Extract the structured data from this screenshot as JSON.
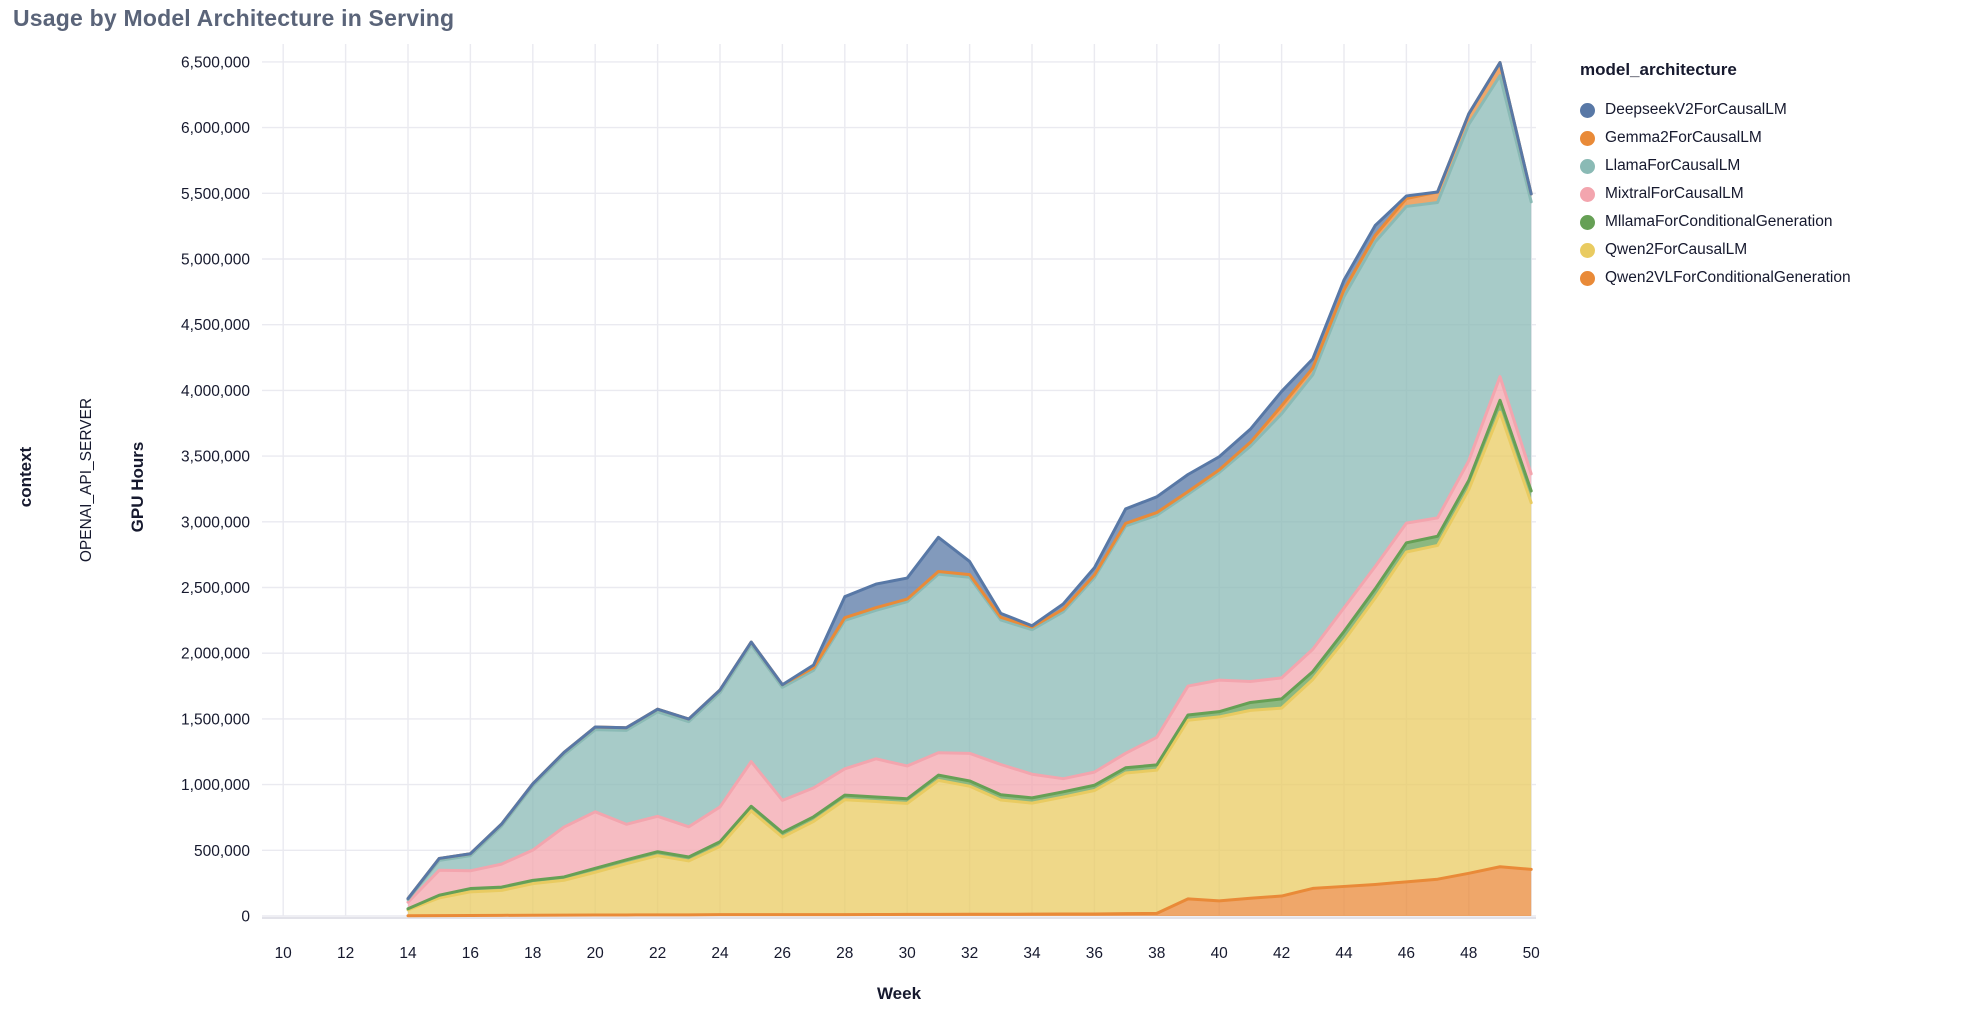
{
  "title": "Usage by Model Architecture in Serving",
  "facet": {
    "row_header": "context",
    "row_value": "OPENAI_API_SERVER"
  },
  "legend": {
    "title": "model_architecture",
    "items": [
      {
        "label": "DeepseekV2ForCausalLM",
        "color": "#5878a6"
      },
      {
        "label": "Gemma2ForCausalLM",
        "color": "#e98a38"
      },
      {
        "label": "LlamaForCausalLM",
        "color": "#8abab5"
      },
      {
        "label": "MixtralForCausalLM",
        "color": "#f3a5ae"
      },
      {
        "label": "MllamaForConditionalGeneration",
        "color": "#66a055"
      },
      {
        "label": "Qwen2ForCausalLM",
        "color": "#e9cb61"
      },
      {
        "label": "Qwen2VLForConditionalGeneration",
        "color": "#e98a38"
      }
    ]
  },
  "chart_data": {
    "type": "area",
    "stacked": true,
    "title": "Usage by Model Architecture in Serving",
    "xlabel": "Week",
    "ylabel": "GPU Hours",
    "legend_position": "right",
    "grid": true,
    "xlim": [
      10,
      50
    ],
    "x_tick_step": 2,
    "ylim": [
      0,
      6500000
    ],
    "y_tick_step": 500000,
    "x": [
      14,
      15,
      16,
      17,
      18,
      19,
      20,
      21,
      22,
      23,
      24,
      25,
      26,
      27,
      28,
      29,
      30,
      31,
      32,
      33,
      34,
      35,
      36,
      37,
      38,
      39,
      40,
      41,
      42,
      43,
      44,
      45,
      46,
      47,
      48,
      49,
      50
    ],
    "stack_order": "bottom_to_top",
    "fill_opacity": 0.75,
    "series": [
      {
        "name": "Qwen2VLForConditionalGeneration",
        "color": "#e98a38",
        "values": [
          2000,
          3000,
          4000,
          5000,
          6000,
          7000,
          8000,
          8000,
          9000,
          9000,
          10000,
          10000,
          10000,
          10000,
          10000,
          11000,
          12000,
          12000,
          13000,
          13000,
          14000,
          15000,
          15000,
          18000,
          20000,
          130000,
          115000,
          135000,
          152000,
          210000,
          225000,
          240000,
          260000,
          280000,
          325000,
          375000,
          355000
        ]
      },
      {
        "name": "Qwen2ForCausalLM",
        "color": "#e9cb61",
        "values": [
          45000,
          135000,
          180000,
          190000,
          240000,
          265000,
          325000,
          390000,
          450000,
          410000,
          520000,
          790000,
          590000,
          710000,
          875000,
          860000,
          845000,
          1020000,
          975000,
          870000,
          845000,
          890000,
          940000,
          1070000,
          1090000,
          1360000,
          1400000,
          1430000,
          1430000,
          1590000,
          1870000,
          2180000,
          2510000,
          2540000,
          2920000,
          3460000,
          2790000
        ]
      },
      {
        "name": "MllamaForConditionalGeneration",
        "color": "#66a055",
        "values": [
          8000,
          20000,
          25000,
          25000,
          25000,
          25000,
          30000,
          30000,
          30000,
          30000,
          35000,
          35000,
          35000,
          35000,
          35000,
          35000,
          35000,
          40000,
          40000,
          40000,
          40000,
          40000,
          40000,
          40000,
          40000,
          40000,
          40000,
          60000,
          70000,
          60000,
          70000,
          70000,
          70000,
          70000,
          70000,
          90000,
          90000
        ]
      },
      {
        "name": "MixtralForCausalLM",
        "color": "#f3a5ae",
        "values": [
          50000,
          190000,
          135000,
          175000,
          230000,
          380000,
          430000,
          270000,
          270000,
          230000,
          265000,
          340000,
          245000,
          220000,
          200000,
          290000,
          250000,
          170000,
          210000,
          230000,
          180000,
          100000,
          100000,
          110000,
          210000,
          220000,
          240000,
          160000,
          160000,
          170000,
          180000,
          170000,
          150000,
          140000,
          150000,
          180000,
          130000
        ]
      },
      {
        "name": "LlamaForCausalLM",
        "color": "#8abab5",
        "values": [
          20000,
          75000,
          115000,
          290000,
          490000,
          550000,
          625000,
          715000,
          795000,
          800000,
          870000,
          890000,
          860000,
          895000,
          1130000,
          1130000,
          1250000,
          1360000,
          1340000,
          1100000,
          1100000,
          1270000,
          1480000,
          1730000,
          1690000,
          1460000,
          1580000,
          1790000,
          2010000,
          2090000,
          2370000,
          2470000,
          2410000,
          2400000,
          2560000,
          2290000,
          2070000
        ]
      },
      {
        "name": "Gemma2ForCausalLM",
        "color": "#e98a38",
        "values": [
          8000,
          15000,
          15000,
          15000,
          15000,
          18000,
          20000,
          20000,
          20000,
          20000,
          20000,
          20000,
          20000,
          20000,
          20000,
          20000,
          20000,
          20000,
          20000,
          20000,
          20000,
          20000,
          20000,
          20000,
          20000,
          20000,
          20000,
          30000,
          60000,
          50000,
          50000,
          50000,
          60000,
          80000,
          80000,
          100000,
          60000
        ]
      },
      {
        "name": "DeepseekV2ForCausalLM",
        "color": "#5878a6",
        "values": [
          0,
          0,
          0,
          0,
          0,
          0,
          0,
          0,
          0,
          0,
          0,
          0,
          0,
          20000,
          160000,
          180000,
          160000,
          260000,
          100000,
          30000,
          10000,
          40000,
          55000,
          110000,
          120000,
          130000,
          100000,
          100000,
          110000,
          70000,
          75000,
          75000,
          20000,
          0,
          0,
          0,
          0
        ]
      }
    ]
  }
}
